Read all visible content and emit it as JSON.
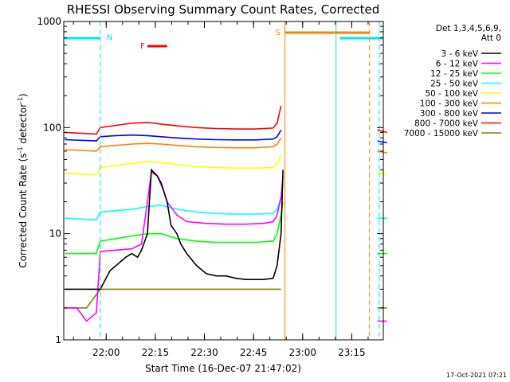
{
  "chart_data": {
    "type": "line",
    "title": "RHESSI Observing Summary Count Rates, Corrected",
    "xlabel": "Start Time (16-Dec-07 21:47:02)",
    "ylabel_parts": [
      "Corrected Count Rate (s",
      "-1",
      " detector",
      "-1",
      ")"
    ],
    "y_scale": "log",
    "ylim": [
      1,
      1000
    ],
    "y_ticks": [
      "1",
      "10",
      "100",
      "1000"
    ],
    "x_ticks": [
      "22:00",
      "22:15",
      "22:30",
      "22:45",
      "23:00",
      "23:15"
    ],
    "legend_header": [
      "Det 1,3,4,5,6,9,",
      "Att 0"
    ],
    "footer_date": "17-Oct-2021 07:21",
    "flags": [
      {
        "label": "N",
        "color": "#00e5e5"
      },
      {
        "label": "F",
        "color": "#ff0000"
      },
      {
        "label": "S",
        "color": "#ff8000"
      }
    ],
    "series": [
      {
        "name": "3 - 6 keV",
        "color": "#000000",
        "values": [
          [
            21.79,
            3
          ],
          [
            21.95,
            3
          ],
          [
            21.97,
            3
          ],
          [
            22.02,
            4.5
          ],
          [
            22.05,
            5
          ],
          [
            22.1,
            6
          ],
          [
            22.13,
            6.5
          ],
          [
            22.16,
            6
          ],
          [
            22.18,
            7
          ],
          [
            22.21,
            10
          ],
          [
            22.23,
            40
          ],
          [
            22.26,
            35
          ],
          [
            22.28,
            30
          ],
          [
            22.31,
            20
          ],
          [
            22.33,
            12
          ],
          [
            22.36,
            10
          ],
          [
            22.38,
            8
          ],
          [
            22.41,
            6.5
          ],
          [
            22.46,
            5
          ],
          [
            22.51,
            4.2
          ],
          [
            22.56,
            4
          ],
          [
            22.61,
            4
          ],
          [
            22.66,
            3.8
          ],
          [
            22.71,
            3.7
          ],
          [
            22.76,
            3.7
          ],
          [
            22.8,
            3.7
          ],
          [
            22.85,
            3.8
          ],
          [
            22.87,
            5
          ],
          [
            22.89,
            10
          ],
          [
            22.9,
            40
          ]
        ]
      },
      {
        "name": "6 - 12 keV",
        "color": "#ff00ff",
        "values": [
          [
            21.79,
            2
          ],
          [
            21.85,
            2
          ],
          [
            21.9,
            1.5
          ],
          [
            21.95,
            1.8
          ],
          [
            21.97,
            6.8
          ],
          [
            22.05,
            7
          ],
          [
            22.13,
            7.2
          ],
          [
            22.18,
            8
          ],
          [
            22.21,
            20
          ],
          [
            22.23,
            38
          ],
          [
            22.26,
            35
          ],
          [
            22.29,
            26
          ],
          [
            22.31,
            20
          ],
          [
            22.36,
            15
          ],
          [
            22.41,
            13
          ],
          [
            22.51,
            12.5
          ],
          [
            22.61,
            12.3
          ],
          [
            22.71,
            12.3
          ],
          [
            22.8,
            12.5
          ],
          [
            22.85,
            13
          ],
          [
            22.87,
            15
          ],
          [
            22.89,
            22
          ],
          [
            22.9,
            35
          ],
          [
            23.38,
            1.5
          ],
          [
            23.43,
            1.5
          ]
        ]
      },
      {
        "name": "12 - 25 keV",
        "color": "#00ff00",
        "values": [
          [
            21.79,
            6.5
          ],
          [
            21.95,
            6.5
          ],
          [
            21.97,
            8.5
          ],
          [
            22.05,
            9
          ],
          [
            22.13,
            9.5
          ],
          [
            22.21,
            10
          ],
          [
            22.28,
            10
          ],
          [
            22.36,
            9
          ],
          [
            22.46,
            8.5
          ],
          [
            22.56,
            8.3
          ],
          [
            22.66,
            8.3
          ],
          [
            22.76,
            8.3
          ],
          [
            22.85,
            8.5
          ],
          [
            22.87,
            10
          ],
          [
            22.89,
            15
          ],
          [
            22.9,
            20
          ],
          [
            23.38,
            6.5
          ],
          [
            23.43,
            6.5
          ]
        ]
      },
      {
        "name": "25 - 50 keV",
        "color": "#00ffff",
        "values": [
          [
            21.79,
            14
          ],
          [
            21.95,
            13.5
          ],
          [
            21.97,
            16
          ],
          [
            22.05,
            16.5
          ],
          [
            22.13,
            17
          ],
          [
            22.21,
            18
          ],
          [
            22.28,
            18.5
          ],
          [
            22.36,
            17
          ],
          [
            22.46,
            16
          ],
          [
            22.56,
            15.5
          ],
          [
            22.66,
            15.3
          ],
          [
            22.76,
            15.3
          ],
          [
            22.85,
            15.5
          ],
          [
            22.87,
            17
          ],
          [
            22.89,
            22
          ],
          [
            22.9,
            30
          ],
          [
            23.38,
            14
          ],
          [
            23.43,
            14
          ]
        ]
      },
      {
        "name": "50 - 100 keV",
        "color": "#ffff00",
        "values": [
          [
            21.79,
            37
          ],
          [
            21.95,
            36
          ],
          [
            21.97,
            42
          ],
          [
            22.05,
            44
          ],
          [
            22.13,
            46
          ],
          [
            22.21,
            48
          ],
          [
            22.28,
            47
          ],
          [
            22.36,
            45
          ],
          [
            22.46,
            43
          ],
          [
            22.56,
            42
          ],
          [
            22.66,
            41.5
          ],
          [
            22.76,
            41.5
          ],
          [
            22.85,
            42
          ],
          [
            22.87,
            45
          ],
          [
            22.89,
            55
          ],
          [
            23.38,
            38
          ],
          [
            23.43,
            36
          ]
        ]
      },
      {
        "name": "100 - 300 keV",
        "color": "#ff8000",
        "values": [
          [
            21.79,
            62
          ],
          [
            21.95,
            60
          ],
          [
            21.97,
            66
          ],
          [
            22.05,
            68
          ],
          [
            22.13,
            70
          ],
          [
            22.21,
            71
          ],
          [
            22.28,
            70
          ],
          [
            22.36,
            68
          ],
          [
            22.46,
            66
          ],
          [
            22.56,
            65
          ],
          [
            22.66,
            64.5
          ],
          [
            22.76,
            64.5
          ],
          [
            22.85,
            66
          ],
          [
            22.87,
            70
          ],
          [
            22.89,
            80
          ],
          [
            23.38,
            60
          ],
          [
            23.43,
            58
          ]
        ]
      },
      {
        "name": "300 - 800 keV",
        "color": "#0000ff",
        "values": [
          [
            21.79,
            77
          ],
          [
            21.95,
            75
          ],
          [
            21.97,
            82
          ],
          [
            22.05,
            84
          ],
          [
            22.13,
            85
          ],
          [
            22.21,
            84
          ],
          [
            22.28,
            82
          ],
          [
            22.36,
            80
          ],
          [
            22.46,
            78
          ],
          [
            22.56,
            77
          ],
          [
            22.66,
            76.5
          ],
          [
            22.76,
            76.5
          ],
          [
            22.85,
            78
          ],
          [
            22.87,
            82
          ],
          [
            22.89,
            95
          ],
          [
            23.38,
            75
          ],
          [
            23.43,
            72
          ]
        ]
      },
      {
        "name": "800 - 7000 keV",
        "color": "#ff0000",
        "values": [
          [
            21.79,
            90
          ],
          [
            21.95,
            87
          ],
          [
            21.97,
            100
          ],
          [
            22.05,
            105
          ],
          [
            22.13,
            110
          ],
          [
            22.21,
            112
          ],
          [
            22.28,
            108
          ],
          [
            22.36,
            104
          ],
          [
            22.46,
            100
          ],
          [
            22.56,
            98
          ],
          [
            22.66,
            97
          ],
          [
            22.76,
            97
          ],
          [
            22.85,
            99
          ],
          [
            22.87,
            110
          ],
          [
            22.89,
            160
          ],
          [
            23.38,
            95
          ],
          [
            23.43,
            90
          ]
        ]
      },
      {
        "name": "7000 - 15000 keV",
        "color": "#808000",
        "values": [
          [
            21.79,
            2
          ],
          [
            21.9,
            2
          ],
          [
            21.97,
            3
          ],
          [
            22.1,
            3
          ],
          [
            22.2,
            3
          ],
          [
            22.3,
            3
          ],
          [
            22.4,
            3
          ],
          [
            22.5,
            3
          ],
          [
            22.6,
            3
          ],
          [
            22.7,
            3
          ],
          [
            22.8,
            3
          ],
          [
            22.89,
            3
          ],
          [
            23.38,
            2
          ],
          [
            23.43,
            2
          ]
        ]
      }
    ]
  }
}
